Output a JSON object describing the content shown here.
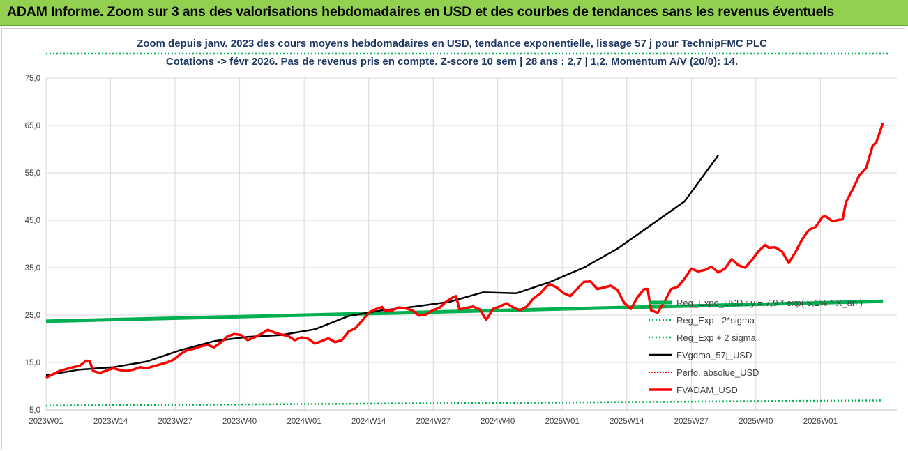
{
  "banner": {
    "title": "ADAM Informe. Zoom sur 3 ans des valorisations hebdomadaires en USD et des courbes de tendances sans les revenus éventuels"
  },
  "colors": {
    "banner": "#92d050",
    "regexpo": "#00b050",
    "dotted_green": "#00b050",
    "fvgdma": "#000000",
    "perfo": "#ff0000",
    "fvadam": "#ff0000"
  },
  "chart_data": {
    "type": "line",
    "title": "Zoom depuis janv. 2023 des cours moyens hebdomadaires en USD, tendance exponentielle, lissage 57 j pour TechnipFMC PLC",
    "subtitle": "Cotations -> févr 2026. Pas de revenus pris en compte. Z-score 10 sem | 28 ans : 2,7 | 1,2. Momentum A/V (20/0): 14.",
    "xlabel": "",
    "ylabel": "",
    "ylim": [
      5,
      75
    ],
    "yticks": [
      "5,0",
      "15,0",
      "25,0",
      "35,0",
      "45,0",
      "55,0",
      "65,0",
      "75,0"
    ],
    "xticks": [
      "2023W01",
      "2023W14",
      "2023W27",
      "2023W40",
      "2024W01",
      "2024W14",
      "2024W27",
      "2024W40",
      "2025W01",
      "2025W14",
      "2025W27",
      "2025W40",
      "2026W01"
    ],
    "grid": "vertical-and-horizontal",
    "legend_position": "right",
    "x_count": 163,
    "series": [
      {
        "name": "Reg_Expo_USD : y = 7,9 * exp( 5,1% * X_an )",
        "style": "thick-solid",
        "color": "#00b050",
        "start": 23.7,
        "end": 27.9
      },
      {
        "name": "Reg_Exp - 2*sigma",
        "style": "dotted",
        "color": "#00b050",
        "start": 5.9,
        "end": 7.0
      },
      {
        "name": "Reg_Exp + 2 sigma",
        "style": "dotted",
        "color": "#00b050",
        "start": 79.5,
        "end": 79.5
      },
      {
        "name": "FVgdma_57j_USD",
        "style": "solid",
        "color": "#000000",
        "points": [
          [
            0,
            12.3
          ],
          [
            10,
            13.5
          ],
          [
            20,
            14.0
          ],
          [
            30,
            15.2
          ],
          [
            40,
            17.6
          ],
          [
            50,
            19.5
          ],
          [
            60,
            20.4
          ],
          [
            70,
            20.8
          ],
          [
            80,
            22.0
          ],
          [
            90,
            24.8
          ],
          [
            100,
            26.0
          ],
          [
            110,
            26.8
          ],
          [
            120,
            27.8
          ],
          [
            130,
            29.8
          ],
          [
            140,
            29.6
          ],
          [
            150,
            32.0
          ],
          [
            160,
            35.0
          ],
          [
            170,
            39.0
          ],
          [
            180,
            44.0
          ],
          [
            190,
            49.0
          ],
          [
            200,
            58.7
          ]
        ]
      },
      {
        "name": "Perfo. absolue_USD",
        "style": "dotted",
        "color": "#ff0000"
      },
      {
        "name": "FVADAM_USD",
        "style": "thick-solid",
        "color": "#ff0000",
        "points": [
          [
            0,
            11.8
          ],
          [
            2,
            12.5
          ],
          [
            4,
            13.2
          ],
          [
            6,
            13.6
          ],
          [
            8,
            14.0
          ],
          [
            10,
            14.3
          ],
          [
            12,
            15.4
          ],
          [
            13,
            15.2
          ],
          [
            14,
            13.2
          ],
          [
            16,
            12.8
          ],
          [
            18,
            13.3
          ],
          [
            20,
            13.8
          ],
          [
            22,
            13.4
          ],
          [
            24,
            13.2
          ],
          [
            26,
            13.5
          ],
          [
            28,
            14.0
          ],
          [
            30,
            13.8
          ],
          [
            32,
            14.2
          ],
          [
            34,
            14.6
          ],
          [
            36,
            15.0
          ],
          [
            38,
            15.6
          ],
          [
            40,
            16.8
          ],
          [
            42,
            17.6
          ],
          [
            44,
            17.9
          ],
          [
            46,
            18.4
          ],
          [
            48,
            18.7
          ],
          [
            50,
            18.2
          ],
          [
            52,
            19.2
          ],
          [
            54,
            20.5
          ],
          [
            56,
            21.0
          ],
          [
            58,
            20.8
          ],
          [
            60,
            19.7
          ],
          [
            62,
            20.3
          ],
          [
            64,
            21.0
          ],
          [
            66,
            21.9
          ],
          [
            68,
            21.3
          ],
          [
            70,
            20.9
          ],
          [
            72,
            20.6
          ],
          [
            74,
            19.7
          ],
          [
            76,
            20.3
          ],
          [
            78,
            20.0
          ],
          [
            80,
            19.0
          ],
          [
            82,
            19.5
          ],
          [
            84,
            20.1
          ],
          [
            86,
            19.3
          ],
          [
            88,
            19.7
          ],
          [
            90,
            21.5
          ],
          [
            92,
            22.2
          ],
          [
            94,
            23.8
          ],
          [
            96,
            25.5
          ],
          [
            98,
            26.2
          ],
          [
            100,
            26.7
          ],
          [
            101,
            25.8
          ],
          [
            103,
            26.0
          ],
          [
            105,
            26.6
          ],
          [
            107,
            26.4
          ],
          [
            109,
            26.0
          ],
          [
            111,
            24.9
          ],
          [
            113,
            25.1
          ],
          [
            115,
            26.0
          ],
          [
            117,
            26.5
          ],
          [
            119,
            27.8
          ],
          [
            121,
            28.7
          ],
          [
            122,
            29.0
          ],
          [
            123,
            26.2
          ],
          [
            125,
            26.5
          ],
          [
            127,
            26.8
          ],
          [
            129,
            26.2
          ],
          [
            131,
            24.0
          ],
          [
            133,
            26.3
          ],
          [
            135,
            26.8
          ],
          [
            137,
            27.5
          ],
          [
            139,
            26.6
          ],
          [
            141,
            26.0
          ],
          [
            143,
            26.8
          ],
          [
            145,
            28.5
          ],
          [
            147,
            29.5
          ],
          [
            149,
            31.1
          ],
          [
            150,
            31.5
          ],
          [
            152,
            30.8
          ],
          [
            154,
            29.6
          ],
          [
            156,
            29.0
          ],
          [
            158,
            30.5
          ],
          [
            160,
            32.0
          ],
          [
            162,
            32.1
          ],
          [
            164,
            30.5
          ],
          [
            166,
            30.8
          ],
          [
            168,
            31.2
          ],
          [
            170,
            30.3
          ],
          [
            172,
            27.6
          ],
          [
            174,
            26.3
          ],
          [
            176,
            28.8
          ],
          [
            178,
            30.5
          ],
          [
            179,
            30.5
          ],
          [
            180,
            26.0
          ],
          [
            182,
            25.5
          ],
          [
            184,
            27.8
          ],
          [
            186,
            30.5
          ],
          [
            188,
            31.0
          ],
          [
            190,
            32.7
          ],
          [
            192,
            34.8
          ],
          [
            194,
            34.2
          ],
          [
            196,
            34.5
          ],
          [
            198,
            35.2
          ],
          [
            200,
            34.0
          ],
          [
            202,
            34.8
          ],
          [
            204,
            36.8
          ],
          [
            206,
            35.5
          ],
          [
            208,
            35.0
          ],
          [
            210,
            36.6
          ],
          [
            212,
            38.5
          ],
          [
            214,
            39.8
          ],
          [
            215,
            39.2
          ],
          [
            217,
            39.3
          ],
          [
            219,
            38.4
          ],
          [
            221,
            36.0
          ],
          [
            223,
            38.3
          ],
          [
            225,
            41.0
          ],
          [
            227,
            43.0
          ],
          [
            229,
            43.6
          ],
          [
            231,
            45.7
          ],
          [
            232,
            45.8
          ],
          [
            234,
            44.8
          ],
          [
            236,
            45.1
          ],
          [
            237,
            45.2
          ],
          [
            238,
            48.8
          ],
          [
            240,
            51.5
          ],
          [
            242,
            54.5
          ],
          [
            244,
            56.0
          ],
          [
            246,
            60.8
          ],
          [
            247,
            61.4
          ],
          [
            249,
            65.5
          ]
        ]
      }
    ],
    "legend": [
      "Reg_Expo_USD : y = 7,9 * exp( 5,1% * X_an )",
      "Reg_Exp - 2*sigma",
      "Reg_Exp + 2 sigma",
      "FVgdma_57j_USD",
      "Perfo. absolue_USD",
      "FVADAM_USD"
    ]
  }
}
